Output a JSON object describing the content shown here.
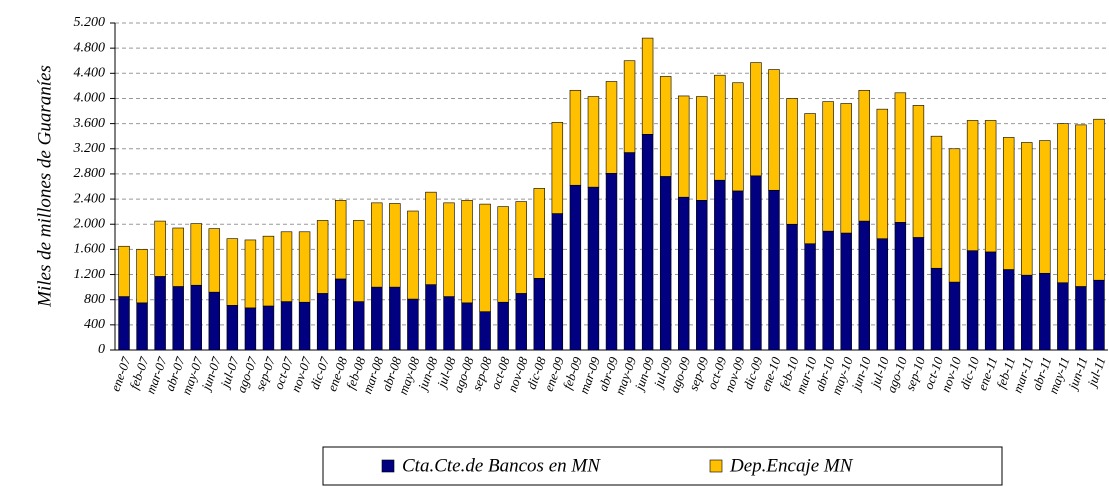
{
  "chart_data": {
    "type": "bar",
    "stacked": true,
    "y_label": "Miles de millones de Guaraníes",
    "categories": [
      "ene-07",
      "feb-07",
      "mar-07",
      "abr-07",
      "may-07",
      "jun-07",
      "jul-07",
      "ago-07",
      "sep-07",
      "oct-07",
      "nov-07",
      "dic-07",
      "ene-08",
      "feb-08",
      "mar-08",
      "abr-08",
      "may-08",
      "jun-08",
      "jul-08",
      "ago-08",
      "sep-08",
      "oct-08",
      "nov-08",
      "dic-08",
      "ene-09",
      "feb-09",
      "mar-09",
      "abr-09",
      "may-09",
      "jun-09",
      "jul-09",
      "ago-09",
      "sep-09",
      "oct-09",
      "nov-09",
      "dic-09",
      "ene-10",
      "feb-10",
      "mar-10",
      "abr-10",
      "may-10",
      "jun-10",
      "jul-10",
      "ago-10",
      "sep-10",
      "oct-10",
      "nov-10",
      "dic-10",
      "ene-11",
      "feb-11",
      "mar-11",
      "abr-11",
      "may-11",
      "jun-11",
      "jul-11"
    ],
    "series": [
      {
        "name": "Cta.Cte.de Bancos en MN",
        "color": "#000080",
        "values": [
          850,
          750,
          1170,
          1010,
          1030,
          920,
          710,
          670,
          700,
          770,
          760,
          900,
          1130,
          770,
          1000,
          1000,
          810,
          1040,
          850,
          750,
          610,
          760,
          900,
          1140,
          2170,
          2620,
          2590,
          2810,
          3140,
          3430,
          2760,
          2430,
          2380,
          2700,
          2530,
          2770,
          2540,
          2000,
          1690,
          1890,
          1860,
          2050,
          1770,
          2030,
          1790,
          1300,
          1080,
          1580,
          1560,
          1280,
          1190,
          1220,
          1070,
          1010,
          1110
        ]
      },
      {
        "name": "Dep.Encaje MN",
        "color": "#ffc000",
        "values": [
          800,
          850,
          880,
          930,
          980,
          1010,
          1060,
          1080,
          1110,
          1110,
          1120,
          1160,
          1250,
          1290,
          1340,
          1330,
          1400,
          1470,
          1490,
          1630,
          1710,
          1520,
          1460,
          1430,
          1450,
          1510,
          1440,
          1460,
          1460,
          1530,
          1590,
          1610,
          1650,
          1670,
          1720,
          1800,
          1920,
          2000,
          2070,
          2060,
          2060,
          2080,
          2060,
          2060,
          2100,
          2100,
          2120,
          2070,
          2090,
          2100,
          2110,
          2110,
          2530,
          2570,
          2560
        ]
      }
    ],
    "ylim": [
      0,
      5200
    ],
    "yticks": [
      0,
      400,
      800,
      {
        "value": 1200,
        "label": "1.200"
      },
      {
        "value": 1600,
        "label": "1.600"
      },
      {
        "value": 2000,
        "label": "2.000"
      },
      {
        "value": 2400,
        "label": "2.400"
      },
      {
        "value": 2800,
        "label": "2.800"
      },
      {
        "value": 3200,
        "label": "3.200"
      },
      {
        "value": 3600,
        "label": "3.600"
      },
      {
        "value": 4000,
        "label": "4.000"
      },
      {
        "value": 4400,
        "label": "4.400"
      },
      {
        "value": 4800,
        "label": "4.800"
      },
      {
        "value": 5200,
        "label": "5.200"
      }
    ],
    "grid": true,
    "legend": "bottom"
  }
}
